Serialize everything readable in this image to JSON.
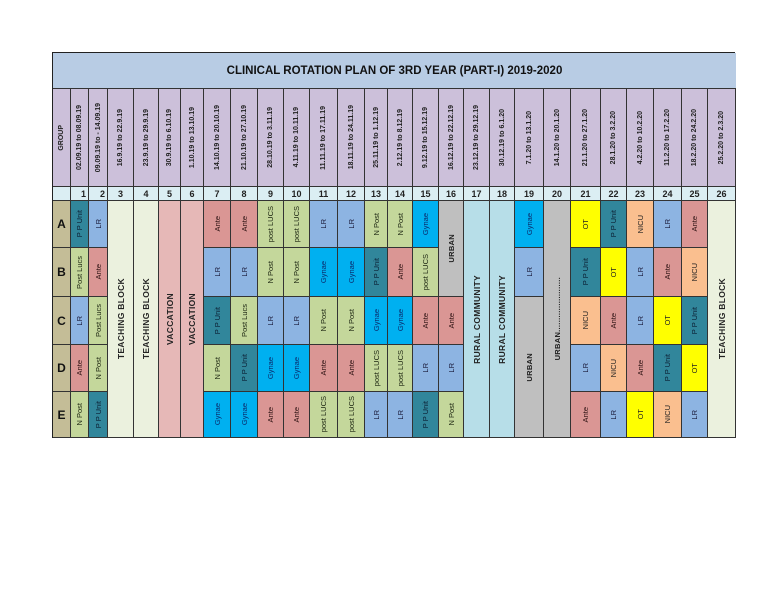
{
  "title": "CLINICAL ROTATION PLAN OF 3RD YEAR (PART-I) 2019-2020",
  "group_header": "GROUP",
  "colors": {
    "title_bg": "#b8cce4",
    "header_bg": "#ccc0da",
    "number_bg": "#dbeef3",
    "group_bg": "#c4bd97",
    "teaching_block": "#ebf1de",
    "vaccation": "#e6b8b7",
    "rural_community": "#b7dee8",
    "urban": "#bfbfbf",
    "Ante": "#da9694",
    "LR": "#8db4e2",
    "PPUnit": "#31869b",
    "NPost": "#c4d79b",
    "postLUCS": "#c4d79b",
    "Gynae": "#00b0f0",
    "OT": "#ffff00",
    "NICU": "#fabf8f"
  },
  "weeks": [
    {
      "n": "1",
      "dates": "02.09.19 to 08.09.19"
    },
    {
      "n": "2",
      "dates": "09.09.19 to - 14.09.19"
    },
    {
      "n": "3",
      "dates": "16.9.19 to 22.9.19"
    },
    {
      "n": "4",
      "dates": "23.9.19 to 29.9.19"
    },
    {
      "n": "5",
      "dates": "30.9.19 to 6.10.19"
    },
    {
      "n": "6",
      "dates": "1.10.19 to 13.10.19"
    },
    {
      "n": "7",
      "dates": "14.10.19 to 20.10.19"
    },
    {
      "n": "8",
      "dates": "21.10.19 to 27.10.19"
    },
    {
      "n": "9",
      "dates": "28.10.19 to 3.11.19"
    },
    {
      "n": "10",
      "dates": "4.11.19 to 10.11.19"
    },
    {
      "n": "11",
      "dates": "11.11.19 to 17.11.19"
    },
    {
      "n": "12",
      "dates": "18.11.19 to 24.11.19"
    },
    {
      "n": "13",
      "dates": "25.11.19 to 1.12.19"
    },
    {
      "n": "14",
      "dates": "2.12.19 to 8.12.19"
    },
    {
      "n": "15",
      "dates": "9.12.19 to 15.12.19"
    },
    {
      "n": "16",
      "dates": "16.12.19 to 22.12.19"
    },
    {
      "n": "17",
      "dates": "23.12.19 to 29.12.19"
    },
    {
      "n": "18",
      "dates": "30.12.19 to 6.1.20"
    },
    {
      "n": "19",
      "dates": "7.1.20 to 13.1.20"
    },
    {
      "n": "20",
      "dates": "14.1.20 to 20.1.20"
    },
    {
      "n": "21",
      "dates": "21.1.20 to 27.1.20"
    },
    {
      "n": "22",
      "dates": "28.1.20 to 3.2.20"
    },
    {
      "n": "23",
      "dates": "4.2.20 to 10.2.20"
    },
    {
      "n": "24",
      "dates": "11.2.20 to 17.2.20"
    },
    {
      "n": "25",
      "dates": "18.2.20 to 24.2.20"
    },
    {
      "n": "26",
      "dates": "25.2.20 to 2.3.20"
    }
  ],
  "groups": [
    "A",
    "B",
    "C",
    "D",
    "E"
  ],
  "blocks": [
    {
      "col": 3,
      "row_start": 0,
      "row_span": 5,
      "label": "TEACHING BLOCK",
      "type": "teaching_block"
    },
    {
      "col": 4,
      "row_start": 0,
      "row_span": 5,
      "label": "TEACHING BLOCK",
      "type": "teaching_block"
    },
    {
      "col": 5,
      "row_start": 0,
      "row_span": 5,
      "label": "VACCATION",
      "type": "vaccation"
    },
    {
      "col": 6,
      "row_start": 0,
      "row_span": 5,
      "label": "VACCATION",
      "type": "vaccation"
    },
    {
      "col": 16,
      "row_start": 0,
      "row_span": 2,
      "label": "URBAN",
      "type": "urban"
    },
    {
      "col": 17,
      "row_start": 0,
      "row_span": 5,
      "label": "RURAL COMMUNITY",
      "type": "rural_community"
    },
    {
      "col": 18,
      "row_start": 0,
      "row_span": 5,
      "label": "RURAL COMMUNITY",
      "type": "rural_community"
    },
    {
      "col": 19,
      "row_start": 2,
      "row_span": 3,
      "label": "URBAN",
      "type": "urban"
    },
    {
      "col": 20,
      "row_start": 0,
      "row_span": 5,
      "label": "URBAN.......................",
      "type": "urban"
    },
    {
      "col": 26,
      "row_start": 0,
      "row_span": 5,
      "label": "TEACHING BLOCK",
      "type": "teaching_block"
    }
  ],
  "slots": [
    {
      "col": 1,
      "row": 0,
      "label": "P P Unit",
      "type": "PPUnit"
    },
    {
      "col": 2,
      "row": 0,
      "label": "LR",
      "type": "LR"
    },
    {
      "col": 1,
      "row": 1,
      "label": "Post Lucs",
      "type": "NPost"
    },
    {
      "col": 2,
      "row": 1,
      "label": "Ante",
      "type": "Ante"
    },
    {
      "col": 1,
      "row": 2,
      "label": "LR",
      "type": "LR"
    },
    {
      "col": 2,
      "row": 2,
      "label": "Post Lucs",
      "type": "NPost"
    },
    {
      "col": 1,
      "row": 3,
      "label": "Ante",
      "type": "Ante"
    },
    {
      "col": 2,
      "row": 3,
      "label": "N Post",
      "type": "NPost"
    },
    {
      "col": 1,
      "row": 4,
      "label": "N Post",
      "type": "NPost"
    },
    {
      "col": 2,
      "row": 4,
      "label": "P P Unit",
      "type": "PPUnit"
    },
    {
      "col": 7,
      "row": 0,
      "label": "Ante",
      "type": "Ante"
    },
    {
      "col": 8,
      "row": 0,
      "label": "Ante",
      "type": "Ante"
    },
    {
      "col": 9,
      "row": 0,
      "label": "post LUCS",
      "type": "postLUCS"
    },
    {
      "col": 10,
      "row": 0,
      "label": "post LUCS",
      "type": "postLUCS"
    },
    {
      "col": 11,
      "row": 0,
      "label": "LR",
      "type": "LR"
    },
    {
      "col": 12,
      "row": 0,
      "label": "LR",
      "type": "LR"
    },
    {
      "col": 13,
      "row": 0,
      "label": "N Post",
      "type": "NPost"
    },
    {
      "col": 14,
      "row": 0,
      "label": "N Post",
      "type": "NPost"
    },
    {
      "col": 15,
      "row": 0,
      "label": "Gynae",
      "type": "Gynae"
    },
    {
      "col": 7,
      "row": 1,
      "label": "LR",
      "type": "LR"
    },
    {
      "col": 8,
      "row": 1,
      "label": "LR",
      "type": "LR"
    },
    {
      "col": 9,
      "row": 1,
      "label": "N Post",
      "type": "NPost"
    },
    {
      "col": 10,
      "row": 1,
      "label": "N Post",
      "type": "NPost"
    },
    {
      "col": 11,
      "row": 1,
      "label": "Gynae",
      "type": "Gynae"
    },
    {
      "col": 12,
      "row": 1,
      "label": "Gynae",
      "type": "Gynae"
    },
    {
      "col": 13,
      "row": 1,
      "label": "P P Unit",
      "type": "PPUnit"
    },
    {
      "col": 14,
      "row": 1,
      "label": "Ante",
      "type": "Ante"
    },
    {
      "col": 15,
      "row": 1,
      "label": "post LUCS",
      "type": "postLUCS"
    },
    {
      "col": 7,
      "row": 2,
      "label": "P P Unit",
      "type": "PPUnit"
    },
    {
      "col": 8,
      "row": 2,
      "label": "Post Lucs",
      "type": "NPost"
    },
    {
      "col": 9,
      "row": 2,
      "label": "LR",
      "type": "LR"
    },
    {
      "col": 10,
      "row": 2,
      "label": "LR",
      "type": "LR"
    },
    {
      "col": 11,
      "row": 2,
      "label": "N Post",
      "type": "NPost"
    },
    {
      "col": 12,
      "row": 2,
      "label": "N Post",
      "type": "NPost"
    },
    {
      "col": 13,
      "row": 2,
      "label": "Gynae",
      "type": "Gynae"
    },
    {
      "col": 14,
      "row": 2,
      "label": "Gynae",
      "type": "Gynae"
    },
    {
      "col": 15,
      "row": 2,
      "label": "Ante",
      "type": "Ante"
    },
    {
      "col": 16,
      "row": 2,
      "label": "Ante",
      "type": "Ante"
    },
    {
      "col": 7,
      "row": 3,
      "label": "N Post",
      "type": "NPost"
    },
    {
      "col": 8,
      "row": 3,
      "label": "P P Unit",
      "type": "PPUnit"
    },
    {
      "col": 9,
      "row": 3,
      "label": "Gynae",
      "type": "Gynae"
    },
    {
      "col": 10,
      "row": 3,
      "label": "Gynae",
      "type": "Gynae"
    },
    {
      "col": 11,
      "row": 3,
      "label": "Ante",
      "type": "Ante"
    },
    {
      "col": 12,
      "row": 3,
      "label": "Ante",
      "type": "Ante"
    },
    {
      "col": 13,
      "row": 3,
      "label": "post LUCS",
      "type": "postLUCS"
    },
    {
      "col": 14,
      "row": 3,
      "label": "post LUCS",
      "type": "postLUCS"
    },
    {
      "col": 15,
      "row": 3,
      "label": "LR",
      "type": "LR"
    },
    {
      "col": 16,
      "row": 3,
      "label": "LR",
      "type": "LR"
    },
    {
      "col": 7,
      "row": 4,
      "label": "Gynae",
      "type": "Gynae"
    },
    {
      "col": 8,
      "row": 4,
      "label": "Gynae",
      "type": "Gynae"
    },
    {
      "col": 9,
      "row": 4,
      "label": "Ante",
      "type": "Ante"
    },
    {
      "col": 10,
      "row": 4,
      "label": "Ante",
      "type": "Ante"
    },
    {
      "col": 11,
      "row": 4,
      "label": "post LUCS",
      "type": "postLUCS"
    },
    {
      "col": 12,
      "row": 4,
      "label": "post LUCS",
      "type": "postLUCS"
    },
    {
      "col": 13,
      "row": 4,
      "label": "LR",
      "type": "LR"
    },
    {
      "col": 14,
      "row": 4,
      "label": "LR",
      "type": "LR"
    },
    {
      "col": 15,
      "row": 4,
      "label": "P P Unit",
      "type": "PPUnit"
    },
    {
      "col": 16,
      "row": 4,
      "label": "N Post",
      "type": "NPost"
    },
    {
      "col": 19,
      "row": 0,
      "label": "Gynae",
      "type": "Gynae"
    },
    {
      "col": 19,
      "row": 1,
      "label": "LR",
      "type": "LR"
    },
    {
      "col": 21,
      "row": 0,
      "label": "OT",
      "type": "OT"
    },
    {
      "col": 22,
      "row": 0,
      "label": "P P Unit",
      "type": "PPUnit"
    },
    {
      "col": 23,
      "row": 0,
      "label": "NICU",
      "type": "NICU"
    },
    {
      "col": 24,
      "row": 0,
      "label": "LR",
      "type": "LR"
    },
    {
      "col": 25,
      "row": 0,
      "label": "Ante",
      "type": "Ante"
    },
    {
      "col": 21,
      "row": 1,
      "label": "P P Unit",
      "type": "PPUnit"
    },
    {
      "col": 22,
      "row": 1,
      "label": "OT",
      "type": "OT"
    },
    {
      "col": 23,
      "row": 1,
      "label": "LR",
      "type": "LR"
    },
    {
      "col": 24,
      "row": 1,
      "label": "Ante",
      "type": "Ante"
    },
    {
      "col": 25,
      "row": 1,
      "label": "NICU",
      "type": "NICU"
    },
    {
      "col": 21,
      "row": 2,
      "label": "NICU",
      "type": "NICU"
    },
    {
      "col": 22,
      "row": 2,
      "label": "Ante",
      "type": "Ante"
    },
    {
      "col": 23,
      "row": 2,
      "label": "LR",
      "type": "LR"
    },
    {
      "col": 24,
      "row": 2,
      "label": "OT",
      "type": "OT"
    },
    {
      "col": 25,
      "row": 2,
      "label": "P P Unit",
      "type": "PPUnit"
    },
    {
      "col": 21,
      "row": 3,
      "label": "LR",
      "type": "LR"
    },
    {
      "col": 22,
      "row": 3,
      "label": "NICU",
      "type": "NICU"
    },
    {
      "col": 23,
      "row": 3,
      "label": "Ante",
      "type": "Ante"
    },
    {
      "col": 24,
      "row": 3,
      "label": "P P Unit",
      "type": "PPUnit"
    },
    {
      "col": 25,
      "row": 3,
      "label": "OT",
      "type": "OT"
    },
    {
      "col": 21,
      "row": 4,
      "label": "Ante",
      "type": "Ante"
    },
    {
      "col": 22,
      "row": 4,
      "label": "LR",
      "type": "LR"
    },
    {
      "col": 23,
      "row": 4,
      "label": "OT",
      "type": "OT"
    },
    {
      "col": 24,
      "row": 4,
      "label": "NICU",
      "type": "NICU"
    },
    {
      "col": 25,
      "row": 4,
      "label": "LR",
      "type": "LR"
    }
  ]
}
